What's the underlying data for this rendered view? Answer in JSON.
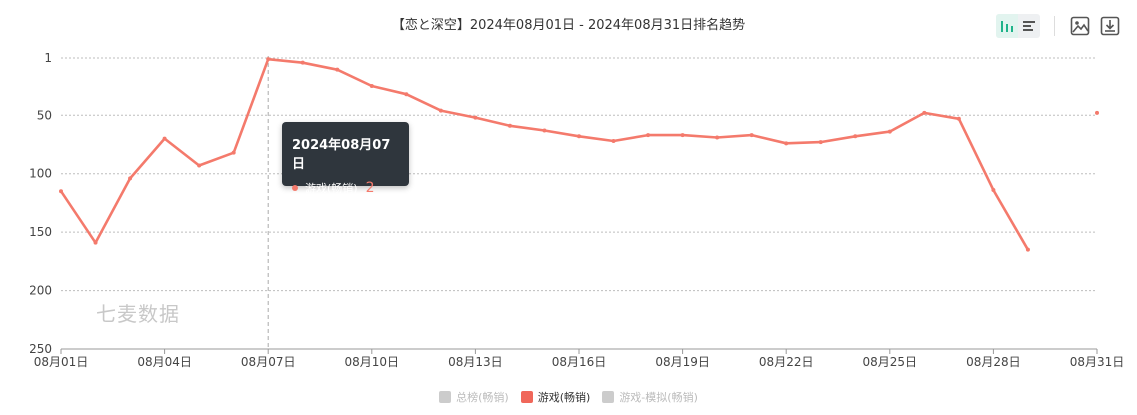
{
  "chart_data": {
    "type": "line",
    "title": "【恋と深空】2024年08月01日 - 2024年08月31日排名趋势",
    "x": [
      "08月01日",
      "08月02日",
      "08月03日",
      "08月04日",
      "08月05日",
      "08月06日",
      "08月07日",
      "08月08日",
      "08月09日",
      "08月10日",
      "08月11日",
      "08月12日",
      "08月13日",
      "08月14日",
      "08月15日",
      "08月16日",
      "08月17日",
      "08月18日",
      "08月19日",
      "08月20日",
      "08月21日",
      "08月22日",
      "08月23日",
      "08月24日",
      "08月25日",
      "08月26日",
      "08月27日",
      "08月28日",
      "08月29日",
      "08月30日",
      "08月31日"
    ],
    "x_tick_labels": [
      "08月01日",
      "08月04日",
      "08月07日",
      "08月10日",
      "08月13日",
      "08月16日",
      "08月19日",
      "08月22日",
      "08月25日",
      "08月28日",
      "08月31日"
    ],
    "y_ticks": [
      1,
      50,
      100,
      150,
      200,
      250
    ],
    "ylim": [
      1,
      250
    ],
    "y_inverted": true,
    "grid": true,
    "series": [
      {
        "name": "游戏(畅销)",
        "color": "#f47a6c",
        "values": [
          115,
          159,
          104,
          70,
          93,
          82,
          2,
          5,
          11,
          25,
          32,
          46,
          52,
          59,
          63,
          68,
          72,
          67,
          67,
          69,
          67,
          74,
          73,
          68,
          64,
          48,
          53,
          114,
          165,
          null,
          48
        ]
      }
    ],
    "legend": [
      {
        "name": "总榜(畅销)",
        "color": "#cccccc",
        "active": false
      },
      {
        "name": "游戏(畅销)",
        "color": "#f0675a",
        "active": true
      },
      {
        "name": "游戏-模拟(畅销)",
        "color": "#cccccc",
        "active": false
      }
    ],
    "legend_position": "bottom-center",
    "tooltip": {
      "date": "2024年08月07日",
      "series": "游戏(畅销)",
      "value": "2"
    }
  },
  "watermark": "七麦数据",
  "colors": {
    "accent": "#1fb38a",
    "line": "#f47a6c"
  }
}
